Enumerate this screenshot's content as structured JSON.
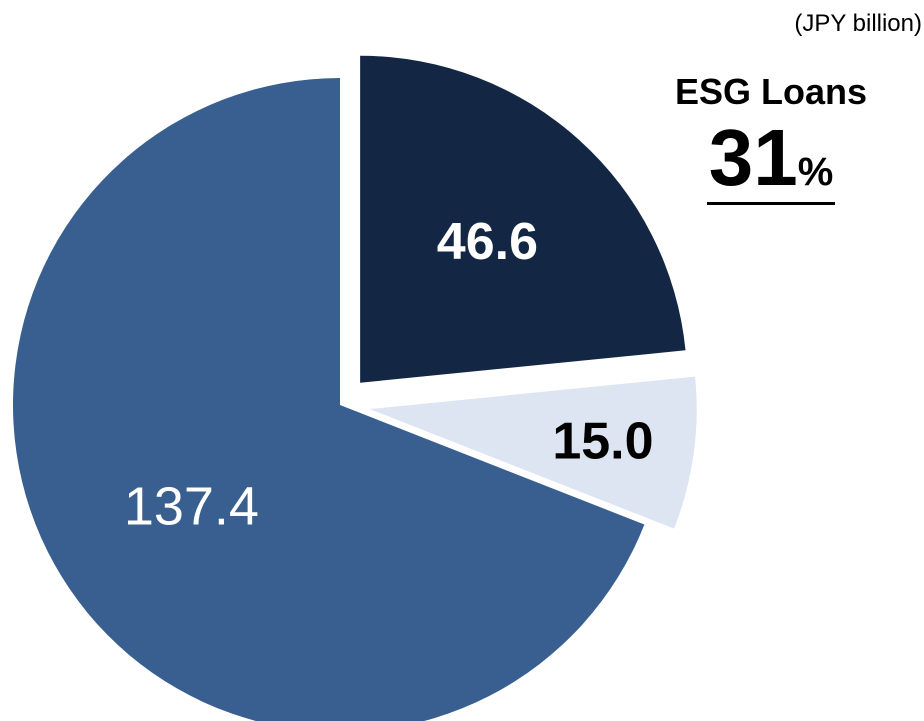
{
  "unit": "(JPY billion)",
  "callout": {
    "title": "ESG Loans",
    "value": "31",
    "suffix": "%"
  },
  "chart_data": {
    "type": "pie",
    "values": [
      46.6,
      15.0,
      137.4
    ],
    "data_labels": [
      "46.6",
      "15.0",
      "137.4"
    ],
    "exploded": [
      true,
      true,
      false
    ],
    "colors": [
      "#132744",
      "#dde5f2",
      "#385f8f"
    ],
    "label_colors": [
      "#ffffff",
      "#000000",
      "#ffffff"
    ],
    "label_bold": [
      true,
      true,
      false
    ]
  }
}
